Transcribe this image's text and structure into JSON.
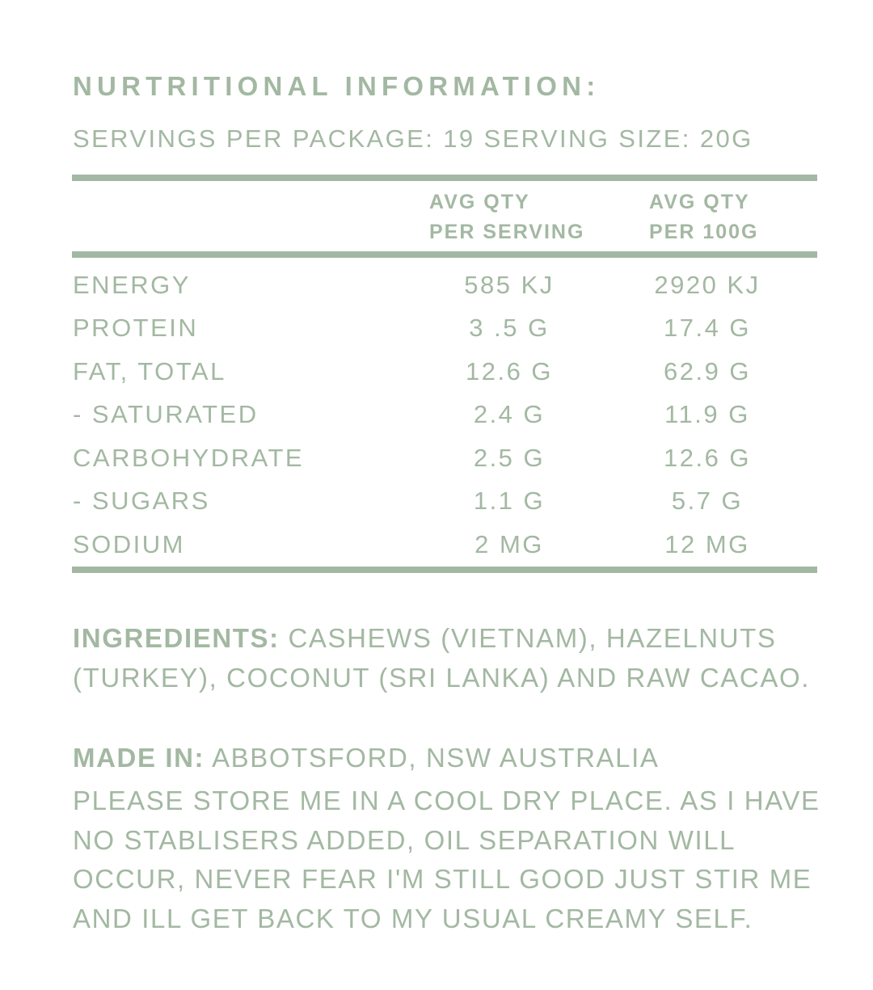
{
  "title": "NURTRITIONAL INFORMATION:",
  "servings": "SERVINGS PER PACKAGE: 19  SERVING SIZE: 20G",
  "columns": {
    "per_serving": [
      "AVG QTY",
      "PER SERVING"
    ],
    "per_100g": [
      "AVG QTY",
      "PER 100G"
    ]
  },
  "rows": [
    {
      "name": "ENERGY",
      "per_serving": "585 KJ",
      "per_100g": "2920 KJ"
    },
    {
      "name": "PROTEIN",
      "per_serving": "3 .5 G",
      "per_100g": "17.4 G"
    },
    {
      "name": "FAT, TOTAL",
      "per_serving": "12.6 G",
      "per_100g": "62.9 G"
    },
    {
      "name": "- SATURATED",
      "per_serving": "2.4 G",
      "per_100g": "11.9 G"
    },
    {
      "name": "CARBOHYDRATE",
      "per_serving": "2.5 G",
      "per_100g": "12.6 G"
    },
    {
      "name": "- SUGARS",
      "per_serving": "1.1 G",
      "per_100g": "5.7 G"
    },
    {
      "name": "SODIUM",
      "per_serving": "2 MG",
      "per_100g": "12 MG"
    }
  ],
  "ingredients": {
    "label": "INGREDIENTS:",
    "text": " CASHEWS (VIETNAM), HAZELNUTS (TURKEY), COCONUT (SRI LANKA) AND RAW CACAO."
  },
  "made_in": {
    "label": "MADE IN:",
    "text": " ABBOTSFORD, NSW AUSTRALIA"
  },
  "storage": "PLEASE STORE ME IN A COOL DRY PLACE. AS I HAVE NO STABLISERS ADDED, OIL SEPARATION WILL OCCUR, NEVER FEAR I'M STILL GOOD JUST STIR ME AND ILL GET BACK TO MY USUAL CREAMY SELF.",
  "colors": {
    "accent": "#a3b8a2",
    "background": "#ffffff"
  }
}
